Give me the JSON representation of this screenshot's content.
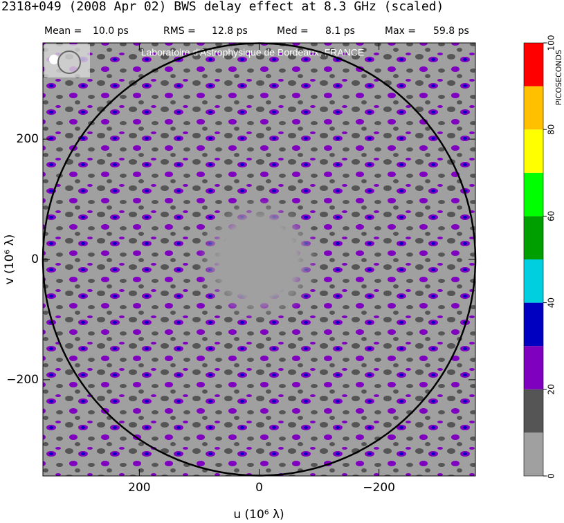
{
  "chart_data": {
    "type": "uvmap",
    "title": "2318+049  (2008 Apr 02)   BWS delay effect at  8.3 GHz (scaled)",
    "stats": [
      {
        "name": "Mean =",
        "value": "10.0 ps"
      },
      {
        "name": "RMS =",
        "value": "12.8 ps"
      },
      {
        "name": "Med =",
        "value": "8.1 ps"
      },
      {
        "name": "Max =",
        "value": "59.8 ps"
      }
    ],
    "watermark": "Laboratoire d'Astrophysique de Bordeaux, FRANCE",
    "x_label": "u  (10⁶ λ)",
    "y_label": "v  (10⁶ λ)",
    "xlim": [
      361,
      -361
    ],
    "ylim": [
      -360,
      360
    ],
    "xticks": [
      200,
      0,
      {
        "value": -200,
        "label": "−200"
      }
    ],
    "yticks": [
      {
        "value": -200,
        "label": "−200"
      },
      0,
      200
    ],
    "circle_radius": 361,
    "colorbar": {
      "label": "PICOSECONDS",
      "levels": [
        0,
        10,
        20,
        30,
        40,
        50,
        60,
        70,
        80,
        90,
        100
      ],
      "colors": [
        "#a0a0a0",
        "#555555",
        "#7f00bf",
        "#0000c0",
        "#00cfe0",
        "#009f00",
        "#00ff00",
        "#ffff00",
        "#ffc000",
        "#ff0000"
      ],
      "ticks": [
        0,
        20,
        40,
        60,
        80,
        100
      ]
    }
  }
}
